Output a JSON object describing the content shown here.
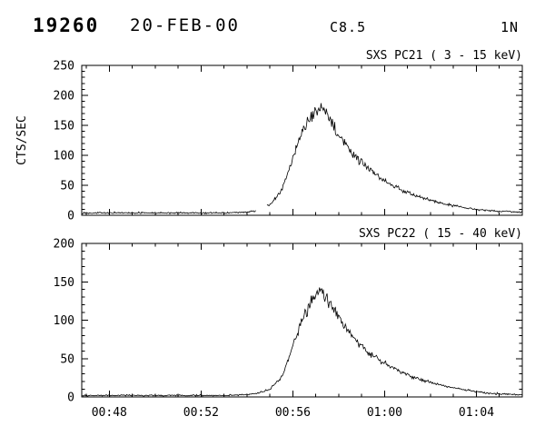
{
  "header": {
    "event_number": "19260",
    "date": "20-FEB-00",
    "xray_class": "C8.5",
    "optical_class": "1N"
  },
  "chart_data": [
    {
      "type": "line",
      "title": "SXS PC21 (  3 - 15 keV)",
      "ylabel": "CTS/SEC",
      "ylim": [
        0,
        250
      ],
      "yticks": [
        0,
        50,
        100,
        150,
        200,
        250
      ],
      "xlim_minutes_after_0000": [
        46.8,
        66.0
      ],
      "xticks": [
        {
          "minute": 48,
          "label": "00:48"
        },
        {
          "minute": 52,
          "label": "00:52"
        },
        {
          "minute": 56,
          "label": "00:56"
        },
        {
          "minute": 60,
          "label": "01:00"
        },
        {
          "minute": 64,
          "label": "01:04"
        }
      ],
      "series": [
        {
          "name": "counts",
          "points_time_value": [
            [
              46.8,
              4
            ],
            [
              50,
              4
            ],
            [
              53,
              4
            ],
            [
              54,
              5
            ],
            [
              54.5,
              8
            ],
            [
              55,
              18
            ],
            [
              55.5,
              40
            ],
            [
              56,
              95
            ],
            [
              56.4,
              140
            ],
            [
              56.8,
              165
            ],
            [
              57.2,
              182
            ],
            [
              57.6,
              160
            ],
            [
              58,
              135
            ],
            [
              58.5,
              108
            ],
            [
              59,
              88
            ],
            [
              59.5,
              72
            ],
            [
              60,
              58
            ],
            [
              60.5,
              47
            ],
            [
              61,
              38
            ],
            [
              61.5,
              31
            ],
            [
              62,
              25
            ],
            [
              62.5,
              20
            ],
            [
              63,
              16
            ],
            [
              63.5,
              13
            ],
            [
              64,
              10
            ],
            [
              64.5,
              8
            ],
            [
              65,
              7
            ],
            [
              66,
              5
            ]
          ]
        }
      ],
      "gaps_minutes": [
        [
          54.4,
          54.85
        ]
      ],
      "noise": {
        "base": 1.2,
        "rel": 0.07,
        "seed": 13
      }
    },
    {
      "type": "line",
      "title": "SXS PC22 ( 15 - 40 keV)",
      "ylabel": "",
      "ylim": [
        0,
        200
      ],
      "yticks": [
        0,
        50,
        100,
        150,
        200
      ],
      "xlim_minutes_after_0000": [
        46.8,
        66.0
      ],
      "xticks": [
        {
          "minute": 48,
          "label": "00:48"
        },
        {
          "minute": 52,
          "label": "00:52"
        },
        {
          "minute": 56,
          "label": "00:56"
        },
        {
          "minute": 60,
          "label": "01:00"
        },
        {
          "minute": 64,
          "label": "01:04"
        }
      ],
      "series": [
        {
          "name": "counts",
          "points_time_value": [
            [
              46.8,
              2
            ],
            [
              50,
              2
            ],
            [
              53,
              2
            ],
            [
              54,
              3
            ],
            [
              54.5,
              5
            ],
            [
              55,
              10
            ],
            [
              55.5,
              25
            ],
            [
              56,
              65
            ],
            [
              56.4,
              100
            ],
            [
              56.8,
              125
            ],
            [
              57.2,
              140
            ],
            [
              57.6,
              122
            ],
            [
              58,
              102
            ],
            [
              58.5,
              82
            ],
            [
              59,
              66
            ],
            [
              59.5,
              54
            ],
            [
              60,
              44
            ],
            [
              60.5,
              36
            ],
            [
              61,
              29
            ],
            [
              61.5,
              23
            ],
            [
              62,
              19
            ],
            [
              62.5,
              15
            ],
            [
              63,
              12
            ],
            [
              63.5,
              9
            ],
            [
              64,
              7
            ],
            [
              64.5,
              5
            ],
            [
              65,
              4
            ],
            [
              66,
              3
            ]
          ]
        }
      ],
      "gaps_minutes": [],
      "noise": {
        "base": 1.0,
        "rel": 0.07,
        "seed": 29
      }
    }
  ]
}
